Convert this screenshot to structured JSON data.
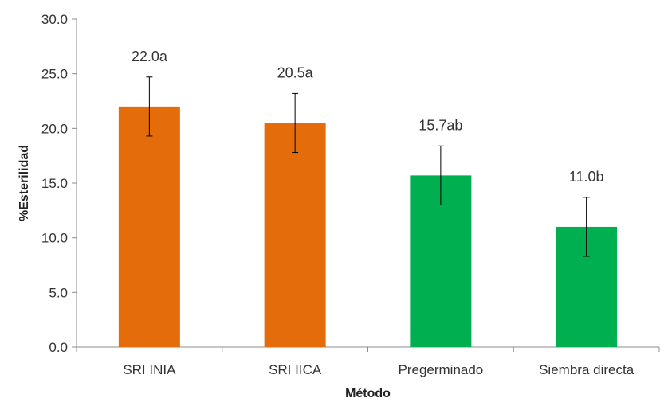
{
  "chart_data": {
    "type": "bar",
    "categories": [
      "SRI INIA",
      "SRI IICA",
      "Pregerminado",
      "Siembra directa"
    ],
    "values": [
      22.0,
      20.5,
      15.7,
      11.0
    ],
    "error": [
      2.7,
      2.7,
      2.7,
      2.7
    ],
    "data_labels": [
      "22.0a",
      "20.5a",
      "15.7ab",
      "11.0b"
    ],
    "bar_colors": [
      "#E46C0A",
      "#E46C0A",
      "#00B050",
      "#00B050"
    ],
    "xlabel": "Método",
    "ylabel": "%Esterilidad",
    "ylim": [
      0,
      30
    ],
    "yticks": [
      "0.0",
      "5.0",
      "10.0",
      "15.0",
      "20.0",
      "25.0",
      "30.0"
    ],
    "grid": false,
    "legend": "none"
  }
}
